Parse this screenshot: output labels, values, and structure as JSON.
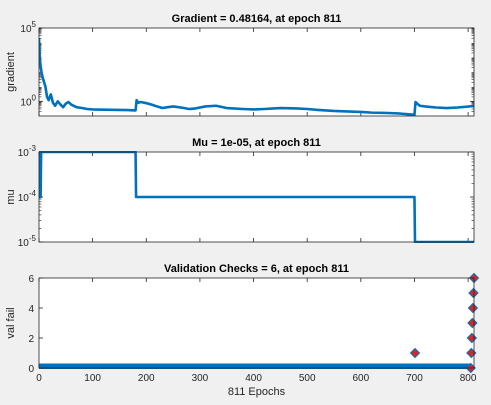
{
  "colors": {
    "line": "#0072bd",
    "marker_fill": "#d62728",
    "marker_edge": "#0072bd",
    "figure_bg": "#f0f0f0",
    "axes_bg": "#ffffff"
  },
  "chart_data": [
    {
      "type": "line",
      "title": "Gradient = 0.48164, at epoch 811",
      "ylabel": "gradient",
      "xlabel": "",
      "yscale": "log",
      "ylim": [
        0.1,
        100000
      ],
      "xlim": [
        0,
        811
      ],
      "yticks": [
        {
          "value": 1,
          "label": "10^0"
        },
        {
          "value": 100000,
          "label": "10^5"
        }
      ],
      "series": [
        {
          "x": [
            0,
            2,
            5,
            8,
            12,
            15,
            18,
            22,
            26,
            30,
            35,
            40,
            45,
            50,
            55,
            60,
            70,
            80,
            90,
            100,
            120,
            150,
            170,
            180,
            182,
            185,
            190,
            200,
            210,
            220,
            230,
            240,
            250,
            260,
            270,
            280,
            290,
            300,
            310,
            330,
            350,
            380,
            400,
            420,
            450,
            480,
            500,
            520,
            550,
            580,
            600,
            620,
            650,
            670,
            680,
            690,
            700,
            702,
            705,
            710,
            720,
            740,
            760,
            780,
            800,
            811
          ],
          "y": [
            20000,
            500,
            80,
            30,
            10,
            2,
            1.2,
            3,
            0.8,
            0.5,
            1,
            0.6,
            0.4,
            0.7,
            0.9,
            0.6,
            0.4,
            0.35,
            0.3,
            0.28,
            0.27,
            0.26,
            0.25,
            0.24,
            1.2,
            0.8,
            0.9,
            0.75,
            0.6,
            0.45,
            0.35,
            0.4,
            0.45,
            0.4,
            0.35,
            0.3,
            0.32,
            0.38,
            0.45,
            0.5,
            0.35,
            0.3,
            0.28,
            0.3,
            0.35,
            0.33,
            0.3,
            0.26,
            0.22,
            0.2,
            0.19,
            0.17,
            0.16,
            0.15,
            0.14,
            0.13,
            0.12,
            0.9,
            0.7,
            0.5,
            0.45,
            0.38,
            0.35,
            0.38,
            0.44,
            0.48164
          ]
        }
      ]
    },
    {
      "type": "line",
      "title": "Mu = 1e-05, at epoch 811",
      "ylabel": "mu",
      "xlabel": "",
      "yscale": "log",
      "ylim": [
        1e-05,
        0.001
      ],
      "xlim": [
        0,
        811
      ],
      "yticks": [
        {
          "value": 1e-05,
          "label": "10^-5"
        },
        {
          "value": 0.0001,
          "label": "10^-4"
        },
        {
          "value": 0.001,
          "label": "10^-3"
        }
      ],
      "series": [
        {
          "x": [
            0,
            1,
            2,
            3,
            4,
            5,
            180,
            181,
            700,
            701,
            811
          ],
          "y": [
            0.001,
            0.0001,
            0.001,
            0.0001,
            0.001,
            0.001,
            0.001,
            0.0001,
            0.0001,
            1e-05,
            1e-05
          ]
        }
      ]
    },
    {
      "type": "scatter",
      "title": "Validation Checks = 6, at epoch 811",
      "ylabel": "val fail",
      "xlabel": "811 Epochs",
      "yscale": "linear",
      "ylim": [
        0,
        6
      ],
      "xlim": [
        0,
        811
      ],
      "xticks": [
        0,
        100,
        200,
        300,
        400,
        500,
        600,
        700,
        800
      ],
      "yticks": [
        {
          "value": 0,
          "label": "0"
        },
        {
          "value": 2,
          "label": "2"
        },
        {
          "value": 4,
          "label": "4"
        },
        {
          "value": 6,
          "label": "6"
        }
      ],
      "zero_line": {
        "x": [
          0,
          800
        ],
        "y": 0
      },
      "series": [
        {
          "x": [
            701,
            805,
            806,
            807,
            808,
            809,
            810,
            811
          ],
          "y": [
            1,
            0,
            1,
            2,
            3,
            4,
            5,
            6
          ]
        }
      ]
    }
  ]
}
